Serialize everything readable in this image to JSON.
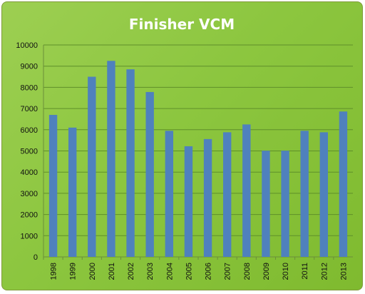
{
  "chart_data": {
    "type": "bar",
    "title": "Finisher VCM",
    "xlabel": "",
    "ylabel": "",
    "categories": [
      "1998",
      "1999",
      "2000",
      "2001",
      "2002",
      "2003",
      "2004",
      "2005",
      "2006",
      "2007",
      "2008",
      "2009",
      "2010",
      "2011",
      "2012",
      "2013"
    ],
    "series": [
      {
        "values": [
          6700,
          6100,
          8500,
          9250,
          8850,
          7780,
          5950,
          5220,
          5560,
          5880,
          6250,
          5010,
          5010,
          5950,
          5880,
          6860
        ]
      }
    ],
    "ylim": [
      0,
      10000
    ],
    "yticks": [
      "0",
      "1000",
      "2000",
      "3000",
      "4000",
      "5000",
      "6000",
      "7000",
      "8000",
      "9000",
      "10000"
    ],
    "grid": true,
    "legend": "none",
    "colors": {
      "bar": "#4f81bd",
      "background": "#8cc63f",
      "gridline": "#5f8f2a"
    }
  }
}
